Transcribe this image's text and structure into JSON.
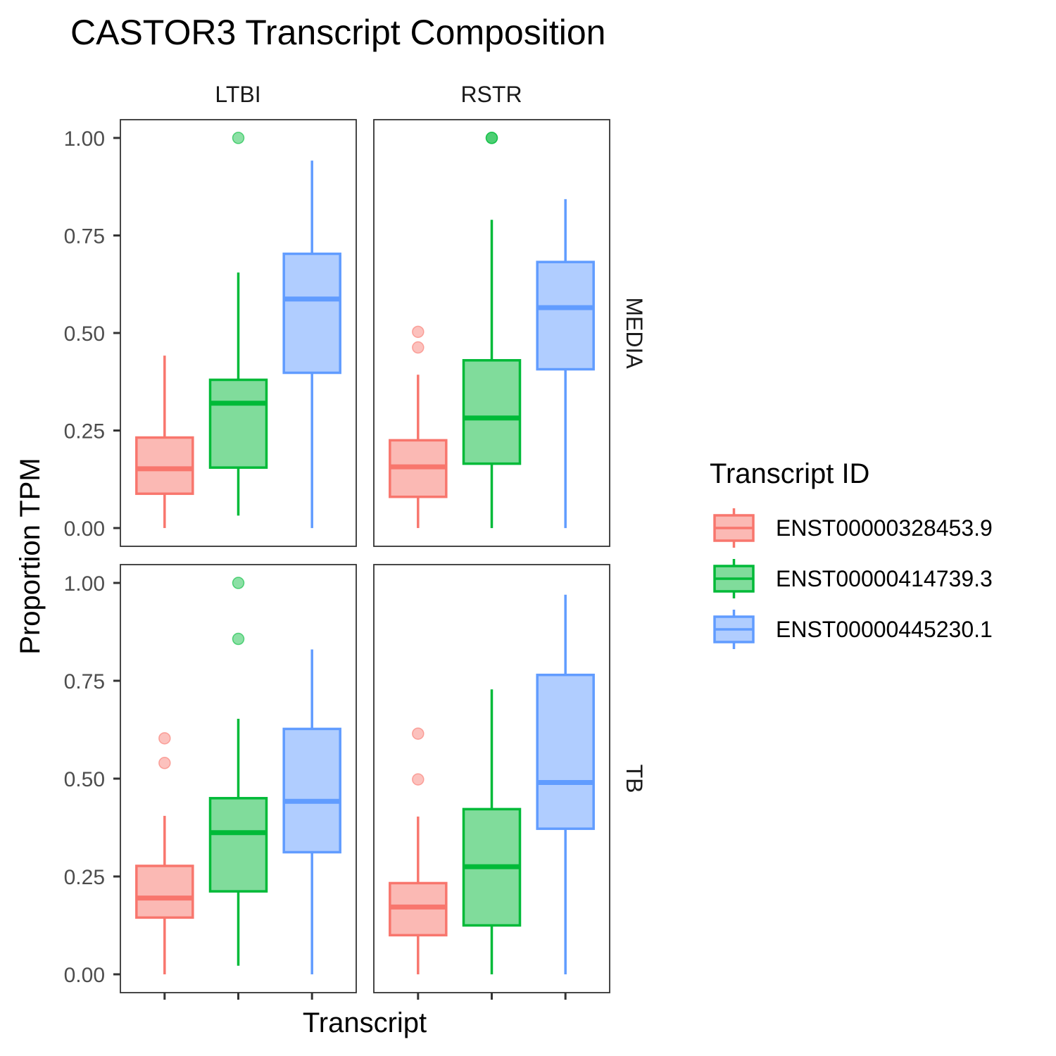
{
  "chart_data": {
    "type": "boxplot",
    "title": "CASTOR3 Transcript Composition",
    "xlabel": "Transcript",
    "ylabel": "Proportion TPM",
    "ylim": [
      -0.0468,
      1.0468
    ],
    "yticks": [
      0,
      0.25,
      0.5,
      0.75,
      1.0
    ],
    "ytick_labels": [
      "0.00",
      "0.25",
      "0.50",
      "0.75",
      "1.00"
    ],
    "facet_columns": [
      "LTBI",
      "RSTR"
    ],
    "facet_rows": [
      "MEDIA",
      "TB"
    ],
    "grid": false,
    "legend": {
      "title": "Transcript ID",
      "position": "right"
    },
    "series": [
      {
        "name": "ENST00000328453.9",
        "color": "#F8766D",
        "fill": "#FBB9B4"
      },
      {
        "name": "ENST00000414739.3",
        "color": "#00BA38",
        "fill": "#80DC9B"
      },
      {
        "name": "ENST00000445230.1",
        "color": "#619CFF",
        "fill": "#B0CDFF"
      }
    ],
    "panels": [
      {
        "col": "LTBI",
        "row": "MEDIA",
        "boxes": [
          {
            "series": 0,
            "whisker_low": 0.0,
            "q1": 0.088,
            "median": 0.152,
            "q3": 0.232,
            "whisker_high": 0.442,
            "outliers": []
          },
          {
            "series": 1,
            "whisker_low": 0.032,
            "q1": 0.155,
            "median": 0.32,
            "q3": 0.38,
            "whisker_high": 0.655,
            "outliers": [
              1.0
            ]
          },
          {
            "series": 2,
            "whisker_low": 0.0,
            "q1": 0.398,
            "median": 0.587,
            "q3": 0.703,
            "whisker_high": 0.942,
            "outliers": []
          }
        ]
      },
      {
        "col": "RSTR",
        "row": "MEDIA",
        "boxes": [
          {
            "series": 0,
            "whisker_low": 0.0,
            "q1": 0.08,
            "median": 0.157,
            "q3": 0.225,
            "whisker_high": 0.393,
            "outliers": [
              0.503,
              0.463
            ]
          },
          {
            "series": 1,
            "whisker_low": 0.0,
            "q1": 0.165,
            "median": 0.282,
            "q3": 0.43,
            "whisker_high": 0.79,
            "outliers": [
              1.0,
              1.0
            ]
          },
          {
            "series": 2,
            "whisker_low": 0.0,
            "q1": 0.407,
            "median": 0.565,
            "q3": 0.682,
            "whisker_high": 0.843,
            "outliers": []
          }
        ]
      },
      {
        "col": "LTBI",
        "row": "TB",
        "boxes": [
          {
            "series": 0,
            "whisker_low": 0.0,
            "q1": 0.145,
            "median": 0.195,
            "q3": 0.277,
            "whisker_high": 0.405,
            "outliers": [
              0.603,
              0.54
            ]
          },
          {
            "series": 1,
            "whisker_low": 0.022,
            "q1": 0.212,
            "median": 0.362,
            "q3": 0.45,
            "whisker_high": 0.653,
            "outliers": [
              1.0,
              0.857
            ]
          },
          {
            "series": 2,
            "whisker_low": 0.0,
            "q1": 0.312,
            "median": 0.442,
            "q3": 0.627,
            "whisker_high": 0.83,
            "outliers": []
          }
        ]
      },
      {
        "col": "RSTR",
        "row": "TB",
        "boxes": [
          {
            "series": 0,
            "whisker_low": 0.0,
            "q1": 0.1,
            "median": 0.172,
            "q3": 0.233,
            "whisker_high": 0.403,
            "outliers": [
              0.615,
              0.498
            ]
          },
          {
            "series": 1,
            "whisker_low": 0.0,
            "q1": 0.125,
            "median": 0.275,
            "q3": 0.422,
            "whisker_high": 0.728,
            "outliers": []
          },
          {
            "series": 2,
            "whisker_low": 0.0,
            "q1": 0.372,
            "median": 0.49,
            "q3": 0.765,
            "whisker_high": 0.97,
            "outliers": []
          }
        ]
      }
    ]
  }
}
